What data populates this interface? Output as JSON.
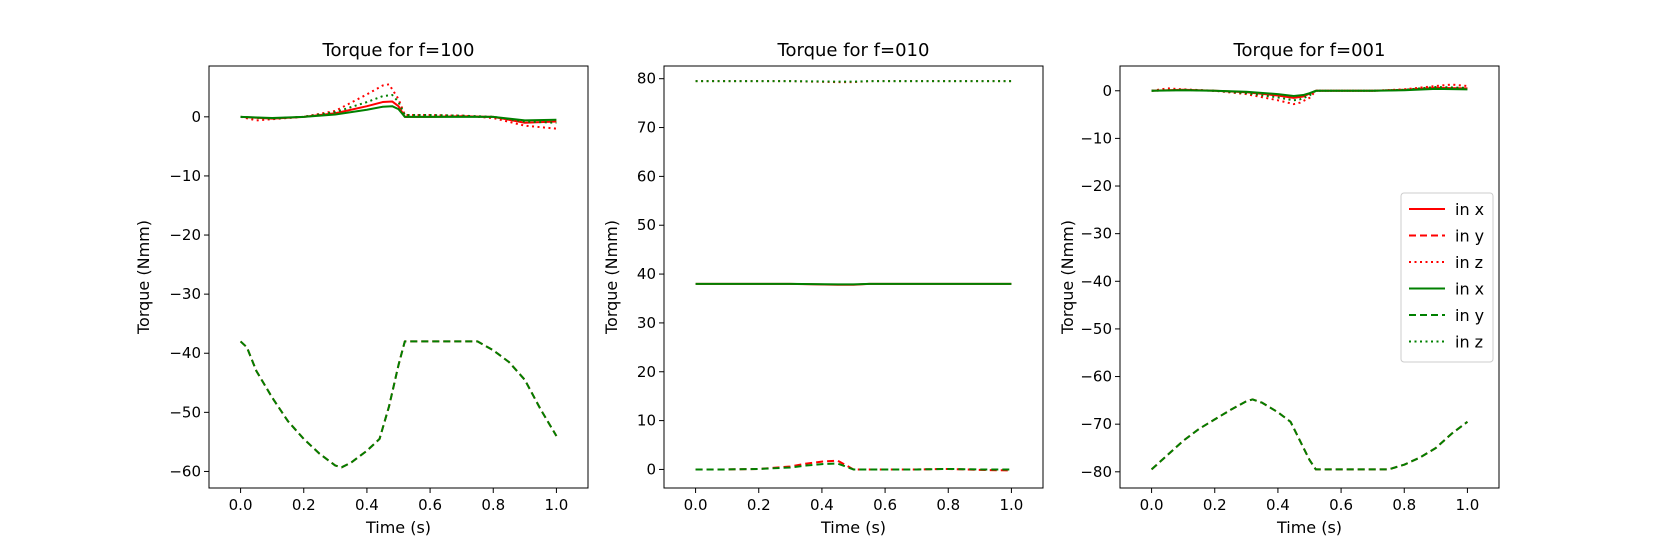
{
  "chart_data": [
    {
      "type": "line",
      "title": "Torque for f=100",
      "xlabel": "Time (s)",
      "ylabel": "Torque (Nmm)",
      "xlim": [
        -0.1,
        1.1
      ],
      "ylim": [
        -62.8,
        8.6
      ],
      "xticks": [
        0.0,
        0.2,
        0.4,
        0.6,
        0.8,
        1.0
      ],
      "xtick_labels": [
        "0.0",
        "0.2",
        "0.4",
        "0.6",
        "0.8",
        "1.0"
      ],
      "yticks": [
        0,
        -10,
        -20,
        -30,
        -40,
        -50,
        -60
      ],
      "ytick_labels": [
        "0",
        "−10",
        "−20",
        "−30",
        "−40",
        "−50",
        "−60"
      ],
      "legend": false,
      "grid": false,
      "series": [
        {
          "name": "in x",
          "color": "#ff0000",
          "style": "solid",
          "x": [
            0.0,
            0.1,
            0.2,
            0.3,
            0.4,
            0.45,
            0.48,
            0.5,
            0.52,
            0.6,
            0.7,
            0.8,
            0.9,
            1.0
          ],
          "y": [
            0.0,
            -0.3,
            0.0,
            0.6,
            1.8,
            2.5,
            2.6,
            1.8,
            0.0,
            0.0,
            0.1,
            0.0,
            -1.0,
            -0.8
          ]
        },
        {
          "name": "in y",
          "color": "#ff0000",
          "style": "dashed",
          "x": [
            0.0,
            0.02,
            0.05,
            0.1,
            0.15,
            0.2,
            0.25,
            0.3,
            0.32,
            0.35,
            0.4,
            0.44,
            0.47,
            0.5,
            0.52,
            0.6,
            0.7,
            0.75,
            0.8,
            0.85,
            0.9,
            0.95,
            1.0
          ],
          "y": [
            -38.0,
            -39.0,
            -43.0,
            -47.5,
            -51.5,
            -54.5,
            -57.0,
            -59.0,
            -59.3,
            -58.5,
            -56.5,
            -54.5,
            -49.0,
            -42.0,
            -38.0,
            -38.0,
            -38.0,
            -38.0,
            -39.5,
            -41.5,
            -44.5,
            -49.5,
            -54.0
          ]
        },
        {
          "name": "in z",
          "color": "#ff0000",
          "style": "dotted",
          "x": [
            0.0,
            0.05,
            0.1,
            0.2,
            0.3,
            0.4,
            0.45,
            0.47,
            0.5,
            0.52,
            0.6,
            0.7,
            0.8,
            0.9,
            1.0
          ],
          "y": [
            0.0,
            -0.6,
            -0.4,
            0.0,
            1.0,
            3.8,
            5.3,
            5.5,
            3.0,
            0.3,
            0.3,
            0.2,
            -0.2,
            -1.5,
            -2.0
          ]
        },
        {
          "name": "in x",
          "color": "#008000",
          "style": "solid",
          "x": [
            0.0,
            0.1,
            0.2,
            0.3,
            0.4,
            0.45,
            0.48,
            0.5,
            0.52,
            0.6,
            0.7,
            0.8,
            0.9,
            1.0
          ],
          "y": [
            0.0,
            -0.2,
            0.0,
            0.4,
            1.2,
            1.7,
            1.8,
            1.3,
            0.0,
            0.0,
            0.0,
            0.0,
            -0.6,
            -0.5
          ]
        },
        {
          "name": "in y",
          "color": "#008000",
          "style": "dashed",
          "x": [
            0.0,
            0.02,
            0.05,
            0.1,
            0.15,
            0.2,
            0.25,
            0.3,
            0.32,
            0.35,
            0.4,
            0.44,
            0.47,
            0.5,
            0.52,
            0.6,
            0.7,
            0.75,
            0.8,
            0.85,
            0.9,
            0.95,
            1.0
          ],
          "y": [
            -38.0,
            -39.0,
            -43.0,
            -47.5,
            -51.5,
            -54.5,
            -57.0,
            -59.0,
            -59.3,
            -58.5,
            -56.5,
            -54.5,
            -49.0,
            -42.0,
            -38.0,
            -38.0,
            -38.0,
            -38.0,
            -39.5,
            -41.5,
            -44.5,
            -49.5,
            -54.0
          ]
        },
        {
          "name": "in z",
          "color": "#008000",
          "style": "dotted",
          "x": [
            0.0,
            0.1,
            0.2,
            0.3,
            0.4,
            0.45,
            0.48,
            0.5,
            0.52,
            0.6,
            0.7,
            0.8,
            0.9,
            1.0
          ],
          "y": [
            0.0,
            -0.3,
            0.0,
            0.8,
            2.5,
            3.5,
            3.7,
            2.5,
            0.3,
            0.3,
            0.2,
            0.0,
            -0.8,
            -1.0
          ]
        }
      ]
    },
    {
      "type": "line",
      "title": "Torque for f=010",
      "xlabel": "Time (s)",
      "ylabel": "Torque (Nmm)",
      "xlim": [
        -0.1,
        1.1
      ],
      "ylim": [
        -3.8,
        82.6
      ],
      "xticks": [
        0.0,
        0.2,
        0.4,
        0.6,
        0.8,
        1.0
      ],
      "xtick_labels": [
        "0.0",
        "0.2",
        "0.4",
        "0.6",
        "0.8",
        "1.0"
      ],
      "yticks": [
        0,
        10,
        20,
        30,
        40,
        50,
        60,
        70,
        80
      ],
      "ytick_labels": [
        "0",
        "10",
        "20",
        "30",
        "40",
        "50",
        "60",
        "70",
        "80"
      ],
      "legend": false,
      "grid": false,
      "series": [
        {
          "name": "in x",
          "color": "#ff0000",
          "style": "solid",
          "x": [
            0.0,
            0.3,
            0.45,
            0.5,
            0.55,
            0.7,
            1.0
          ],
          "y": [
            38.0,
            38.0,
            37.8,
            37.8,
            38.0,
            38.0,
            38.0
          ]
        },
        {
          "name": "in y",
          "color": "#ff0000",
          "style": "dashed",
          "x": [
            0.0,
            0.1,
            0.2,
            0.3,
            0.35,
            0.4,
            0.45,
            0.5,
            0.6,
            0.7,
            0.8,
            0.9,
            1.0
          ],
          "y": [
            0.0,
            0.0,
            0.1,
            0.6,
            1.2,
            1.6,
            1.8,
            0.0,
            0.0,
            0.0,
            0.1,
            -0.1,
            -0.2
          ]
        },
        {
          "name": "in z",
          "color": "#ff0000",
          "style": "dotted",
          "x": [
            0.0,
            0.3,
            0.45,
            0.5,
            0.55,
            0.7,
            1.0
          ],
          "y": [
            79.5,
            79.5,
            79.3,
            79.3,
            79.5,
            79.5,
            79.5
          ]
        },
        {
          "name": "in x",
          "color": "#008000",
          "style": "solid",
          "x": [
            0.0,
            0.3,
            0.45,
            0.5,
            0.55,
            0.7,
            1.0
          ],
          "y": [
            38.0,
            38.0,
            37.9,
            37.9,
            38.0,
            38.0,
            38.0
          ]
        },
        {
          "name": "in y",
          "color": "#008000",
          "style": "dashed",
          "x": [
            0.0,
            0.1,
            0.2,
            0.3,
            0.35,
            0.4,
            0.45,
            0.5,
            0.6,
            0.7,
            0.8,
            0.9,
            1.0
          ],
          "y": [
            0.0,
            0.0,
            0.1,
            0.4,
            0.8,
            1.1,
            1.2,
            0.0,
            0.0,
            0.0,
            0.1,
            0.0,
            0.0
          ]
        },
        {
          "name": "in z",
          "color": "#008000",
          "style": "dotted",
          "x": [
            0.0,
            0.3,
            0.45,
            0.5,
            0.55,
            0.7,
            1.0
          ],
          "y": [
            79.5,
            79.5,
            79.4,
            79.4,
            79.5,
            79.5,
            79.5
          ]
        }
      ]
    },
    {
      "type": "line",
      "title": "Torque for f=001",
      "xlabel": "Time (s)",
      "ylabel": "Torque (Nmm)",
      "xlim": [
        -0.1,
        1.1
      ],
      "ylim": [
        -83.4,
        5.2
      ],
      "xticks": [
        0.0,
        0.2,
        0.4,
        0.6,
        0.8,
        1.0
      ],
      "xtick_labels": [
        "0.0",
        "0.2",
        "0.4",
        "0.6",
        "0.8",
        "1.0"
      ],
      "yticks": [
        0,
        -10,
        -20,
        -30,
        -40,
        -50,
        -60,
        -70,
        -80
      ],
      "ytick_labels": [
        "0",
        "−10",
        "−20",
        "−30",
        "−40",
        "−50",
        "−60",
        "−70",
        "−80"
      ],
      "legend": true,
      "legend_position": "center-right",
      "grid": false,
      "series": [
        {
          "name": "in x",
          "color": "#ff0000",
          "style": "solid",
          "x": [
            0.0,
            0.1,
            0.2,
            0.3,
            0.4,
            0.45,
            0.48,
            0.5,
            0.52,
            0.6,
            0.7,
            0.8,
            0.9,
            1.0
          ],
          "y": [
            0.0,
            0.2,
            0.0,
            -0.3,
            -1.0,
            -1.5,
            -1.2,
            -0.6,
            0.0,
            0.0,
            0.0,
            0.2,
            0.6,
            0.5
          ]
        },
        {
          "name": "in y",
          "color": "#ff0000",
          "style": "dashed",
          "x": [
            0.0,
            0.05,
            0.1,
            0.15,
            0.2,
            0.25,
            0.3,
            0.32,
            0.35,
            0.4,
            0.44,
            0.47,
            0.5,
            0.52,
            0.6,
            0.7,
            0.75,
            0.8,
            0.85,
            0.9,
            0.95,
            1.0
          ],
          "y": [
            -79.5,
            -76.5,
            -73.5,
            -71.0,
            -69.0,
            -67.0,
            -65.2,
            -64.8,
            -65.5,
            -67.5,
            -69.5,
            -73.5,
            -77.5,
            -79.5,
            -79.5,
            -79.5,
            -79.5,
            -78.5,
            -77.0,
            -75.0,
            -72.0,
            -69.5
          ]
        },
        {
          "name": "in z",
          "color": "#ff0000",
          "style": "dotted",
          "x": [
            0.0,
            0.05,
            0.1,
            0.2,
            0.3,
            0.4,
            0.45,
            0.47,
            0.5,
            0.52,
            0.6,
            0.7,
            0.8,
            0.9,
            0.95,
            1.0
          ],
          "y": [
            0.0,
            0.5,
            0.3,
            0.0,
            -0.7,
            -2.0,
            -2.8,
            -2.5,
            -1.5,
            0.0,
            0.0,
            0.0,
            0.3,
            1.0,
            1.3,
            1.0
          ]
        },
        {
          "name": "in x",
          "color": "#008000",
          "style": "solid",
          "x": [
            0.0,
            0.1,
            0.2,
            0.3,
            0.4,
            0.45,
            0.48,
            0.5,
            0.52,
            0.6,
            0.7,
            0.8,
            0.9,
            1.0
          ],
          "y": [
            0.0,
            0.1,
            0.0,
            -0.2,
            -0.7,
            -1.1,
            -0.9,
            -0.5,
            0.0,
            0.0,
            0.0,
            0.1,
            0.4,
            0.3
          ]
        },
        {
          "name": "in y",
          "color": "#008000",
          "style": "dashed",
          "x": [
            0.0,
            0.05,
            0.1,
            0.15,
            0.2,
            0.25,
            0.3,
            0.32,
            0.35,
            0.4,
            0.44,
            0.47,
            0.5,
            0.52,
            0.6,
            0.7,
            0.75,
            0.8,
            0.85,
            0.9,
            0.95,
            1.0
          ],
          "y": [
            -79.5,
            -76.5,
            -73.5,
            -71.0,
            -69.0,
            -67.0,
            -65.2,
            -64.8,
            -65.5,
            -67.5,
            -69.5,
            -73.5,
            -77.5,
            -79.5,
            -79.5,
            -79.5,
            -79.5,
            -78.5,
            -77.0,
            -75.0,
            -72.0,
            -69.5
          ]
        },
        {
          "name": "in z",
          "color": "#008000",
          "style": "dotted",
          "x": [
            0.0,
            0.1,
            0.2,
            0.3,
            0.4,
            0.45,
            0.47,
            0.5,
            0.52,
            0.6,
            0.7,
            0.8,
            0.9,
            1.0
          ],
          "y": [
            0.0,
            0.2,
            0.0,
            -0.5,
            -1.4,
            -2.0,
            -1.8,
            -1.0,
            0.0,
            0.0,
            0.0,
            0.2,
            0.8,
            0.6
          ]
        }
      ]
    }
  ]
}
